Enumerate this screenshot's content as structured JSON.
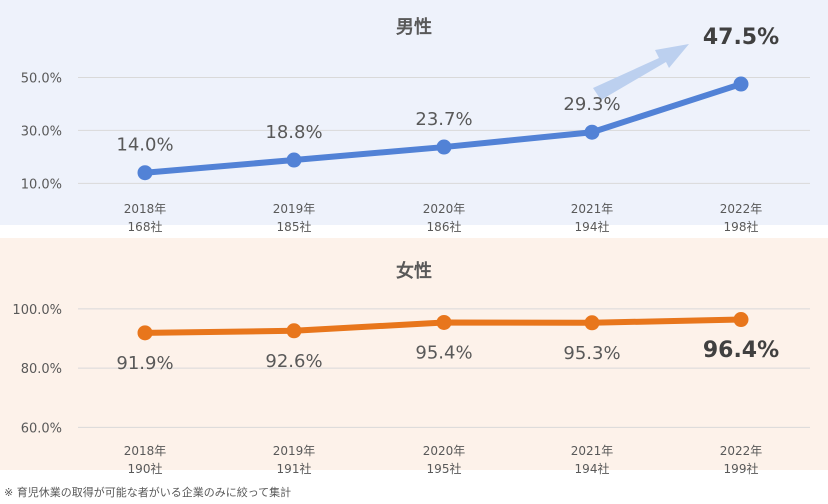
{
  "colors": {
    "male_bg": "#eef2fb",
    "female_bg": "#fdf2ea",
    "male_line": "#5282d6",
    "female_line": "#e8761c",
    "arrow_fill": "#bcd0ef",
    "title_text": "#595959",
    "axis_text": "#595959",
    "grid": "#d9d9d9"
  },
  "chart_data": [
    {
      "type": "line",
      "title": "男性",
      "categories": [
        "2018年\n168社",
        "2019年\n185社",
        "2020年\n186社",
        "2021年\n194社",
        "2022年\n198社"
      ],
      "values": [
        14.0,
        18.8,
        23.7,
        29.3,
        47.5
      ],
      "data_labels": [
        "14.0%",
        "18.8%",
        "23.7%",
        "29.3%",
        "47.5%"
      ],
      "emphasized_label_index": 4,
      "ytick_labels": [
        "10.0%",
        "30.0%",
        "50.0%"
      ],
      "yticks": [
        10,
        30,
        50
      ],
      "ylim": [
        3.7,
        61.5
      ],
      "grid": true,
      "annotation": "upward arrow pointing to 2022 value"
    },
    {
      "type": "line",
      "title": "女性",
      "categories": [
        "2018年\n190社",
        "2019年\n191社",
        "2020年\n195社",
        "2021年\n194社",
        "2022年\n199社"
      ],
      "values": [
        91.9,
        92.6,
        95.4,
        95.3,
        96.4
      ],
      "data_labels": [
        "91.9%",
        "92.6%",
        "95.4%",
        "95.3%",
        "96.4%"
      ],
      "emphasized_label_index": 4,
      "ytick_labels": [
        "60.0%",
        "80.0%",
        "100.0%"
      ],
      "yticks": [
        60,
        80,
        100
      ],
      "ylim": [
        53.4,
        113.1
      ],
      "grid": true
    }
  ],
  "footnote": "※ 育児休業の取得が可能な者がいる企業のみに絞って集計"
}
